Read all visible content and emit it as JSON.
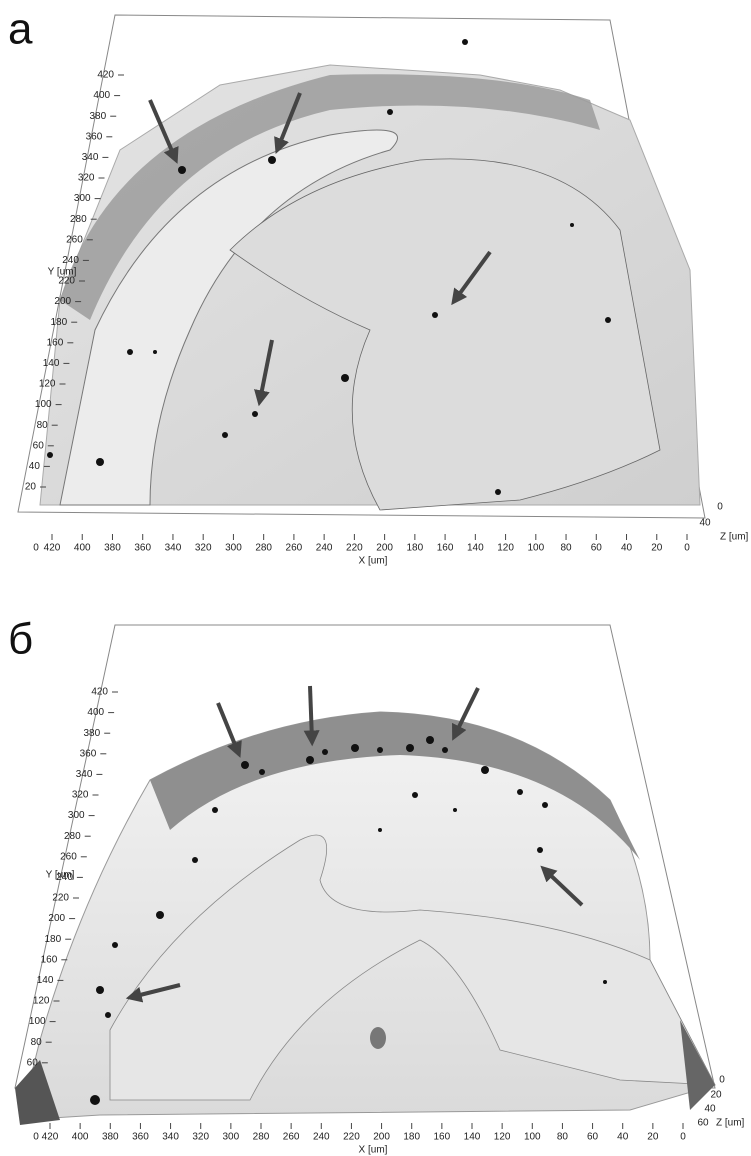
{
  "panels": [
    {
      "label": "а",
      "y_axis_label": "Y [um]",
      "x_axis_label": "X [um]",
      "z_axis_label": "Z [um]",
      "origin_label": "0",
      "y_ticks": [
        420,
        400,
        380,
        360,
        340,
        320,
        300,
        280,
        260,
        240,
        220,
        200,
        180,
        160,
        140,
        120,
        100,
        80,
        60,
        40,
        20
      ],
      "x_ticks": [
        420,
        400,
        380,
        360,
        340,
        320,
        300,
        280,
        260,
        240,
        220,
        200,
        180,
        160,
        140,
        120,
        100,
        80,
        60,
        40,
        20,
        0
      ],
      "z_ticks": [
        0,
        40
      ]
    },
    {
      "label": "б",
      "y_axis_label": "Y [um]",
      "x_axis_label": "X [um]",
      "z_axis_label": "Z [um]",
      "origin_label": "0",
      "y_ticks": [
        420,
        400,
        380,
        360,
        340,
        320,
        300,
        280,
        260,
        240,
        220,
        200,
        180,
        160,
        140,
        120,
        100,
        80,
        60
      ],
      "x_ticks": [
        420,
        400,
        380,
        360,
        340,
        320,
        300,
        280,
        260,
        240,
        220,
        200,
        180,
        160,
        140,
        120,
        100,
        80,
        60,
        40,
        20,
        0
      ],
      "z_ticks": [
        0,
        20,
        40,
        60
      ]
    }
  ]
}
